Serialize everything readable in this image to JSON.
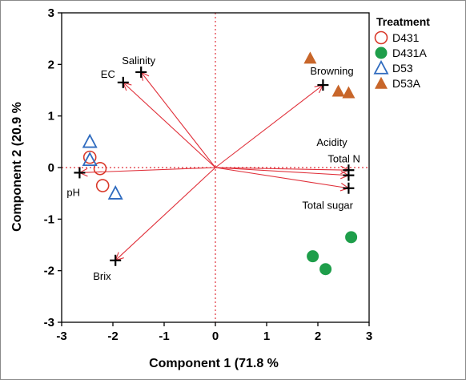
{
  "chart_data": {
    "type": "scatter",
    "subtype": "pca-biplot",
    "xlabel": "Component 1  (71.8 %",
    "ylabel": "Component 2  (20.9 %",
    "xlim": [
      -3,
      3
    ],
    "ylim": [
      -3,
      3
    ],
    "xticks": [
      "-3",
      "-2",
      "-1",
      "0",
      "1",
      "2",
      "3"
    ],
    "yticks": [
      "-3",
      "-2",
      "-1",
      "0",
      "1",
      "2",
      "3"
    ],
    "reference_lines": {
      "x0": true,
      "y0": true,
      "style": "dotted",
      "color": "#e0303a"
    },
    "legend": {
      "title": "Treatment",
      "placement": "right"
    },
    "series": [
      {
        "name": "D431",
        "marker": "open-circle",
        "color": "#d93a2b",
        "points": [
          [
            -2.45,
            0.2
          ],
          [
            -2.25,
            -0.02
          ],
          [
            -2.2,
            -0.35
          ]
        ]
      },
      {
        "name": "D431A",
        "marker": "filled-circle",
        "color": "#1e9e4a",
        "points": [
          [
            1.9,
            -1.72
          ],
          [
            2.15,
            -1.97
          ],
          [
            2.65,
            -1.35
          ]
        ]
      },
      {
        "name": "D53",
        "marker": "open-triangle",
        "color": "#2f6bbf",
        "points": [
          [
            -2.45,
            0.5
          ],
          [
            -2.45,
            0.15
          ],
          [
            -1.95,
            -0.5
          ]
        ]
      },
      {
        "name": "D53A",
        "marker": "filled-triangle",
        "color": "#c8662a",
        "points": [
          [
            1.85,
            2.12
          ],
          [
            2.4,
            1.48
          ],
          [
            2.6,
            1.45
          ]
        ]
      }
    ],
    "loadings": [
      {
        "name": "Salinity",
        "x": -1.45,
        "y": 1.85
      },
      {
        "name": "EC",
        "x": -1.8,
        "y": 1.65
      },
      {
        "name": "Browning",
        "x": 2.1,
        "y": 1.6
      },
      {
        "name": "Acidity",
        "x": 2.6,
        "y": -0.05
      },
      {
        "name": "Total N",
        "x": 2.6,
        "y": -0.15
      },
      {
        "name": "Total sugar",
        "x": 2.6,
        "y": -0.4
      },
      {
        "name": "pH",
        "x": -2.65,
        "y": -0.1
      },
      {
        "name": "Brix",
        "x": -1.95,
        "y": -1.8
      }
    ],
    "loading_color": "#e0303a"
  }
}
